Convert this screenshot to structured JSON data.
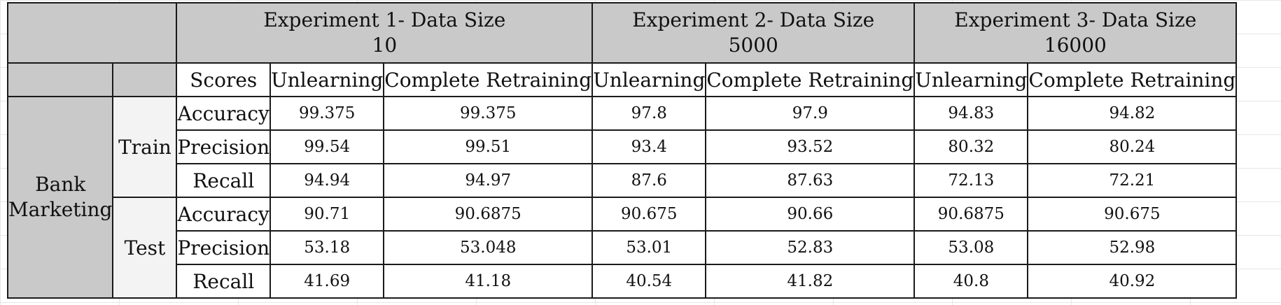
{
  "headers": {
    "experiments": [
      {
        "line1": "Experiment 1- Data Size",
        "line2": "10"
      },
      {
        "line1": "Experiment 2- Data Size",
        "line2": "5000"
      },
      {
        "line1": "Experiment 3- Data Size",
        "line2": "16000"
      }
    ],
    "scores_label": "Scores",
    "columns": [
      "Unlearning",
      "Complete Retraining",
      "Unlearning",
      "Complete Retraining",
      "Unlearning",
      "Complete Retraining"
    ]
  },
  "dataset": {
    "line1": "Bank",
    "line2": "Marketing"
  },
  "splits": [
    "Train",
    "Test"
  ],
  "rows": [
    {
      "metric": "Accuracy",
      "values": [
        "99.375",
        "99.375",
        "97.8",
        "97.9",
        "94.83",
        "94.82"
      ]
    },
    {
      "metric": "Precision",
      "values": [
        "99.54",
        "99.51",
        "93.4",
        "93.52",
        "80.32",
        "80.24"
      ]
    },
    {
      "metric": "Recall",
      "values": [
        "94.94",
        "94.97",
        "87.6",
        "87.63",
        "72.13",
        "72.21"
      ]
    },
    {
      "metric": "Accuracy",
      "values": [
        "90.71",
        "90.6875",
        "90.675",
        "90.66",
        "90.6875",
        "90.675"
      ]
    },
    {
      "metric": "Precision",
      "values": [
        "53.18",
        "53.048",
        "53.01",
        "52.83",
        "53.08",
        "52.98"
      ]
    },
    {
      "metric": "Recall",
      "values": [
        "41.69",
        "41.18",
        "40.54",
        "41.82",
        "40.8",
        "40.92"
      ]
    }
  ]
}
